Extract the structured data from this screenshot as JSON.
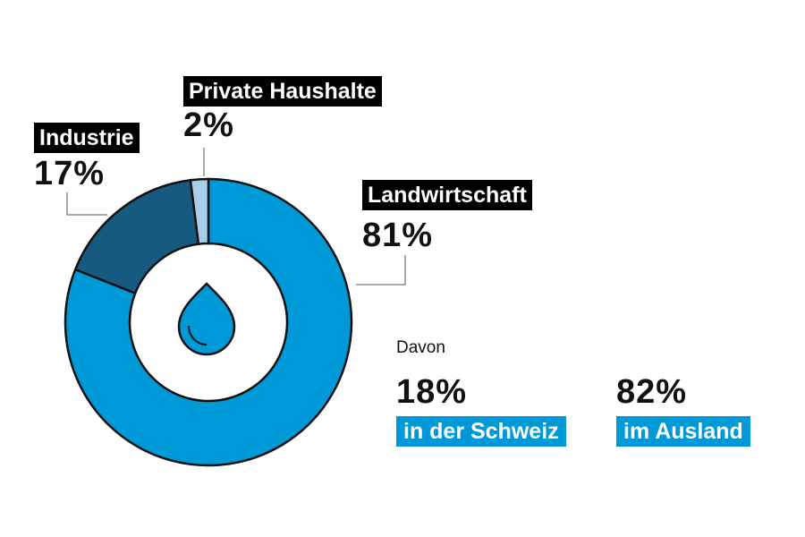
{
  "chart_data": {
    "type": "pie",
    "subtype": "donut",
    "title": "",
    "slices": [
      {
        "label": "Landwirtschaft",
        "value": 81,
        "display": "81%",
        "color": "#0099d8"
      },
      {
        "label": "Industrie",
        "value": 17,
        "display": "17%",
        "color": "#175a80"
      },
      {
        "label": "Private Haushalte",
        "value": 2,
        "display": "2%",
        "color": "#a9cdea"
      }
    ],
    "center_icon": "water-drop-icon",
    "breakdown": {
      "intro": "Davon",
      "items": [
        {
          "value": 18,
          "display": "18%",
          "label": "in der Schweiz"
        },
        {
          "value": 82,
          "display": "82%",
          "label": "im Ausland"
        }
      ]
    }
  }
}
